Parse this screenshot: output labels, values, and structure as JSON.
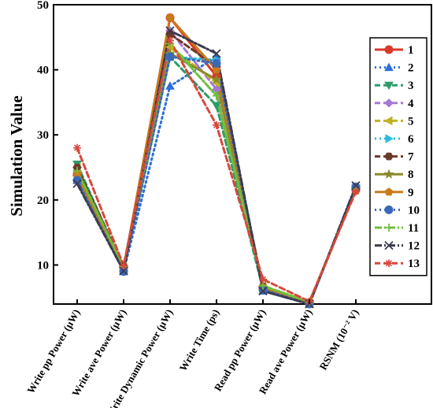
{
  "chart_data": {
    "type": "line",
    "ylabel": "Simulation Value",
    "ylim": [
      4,
      50
    ],
    "yticks": [
      10,
      20,
      30,
      40,
      50
    ],
    "categories": [
      "Write pp Power (µW)",
      "Write ave Power (µW)",
      "Write Dynamic Power (µW)",
      "Write Time (ps)",
      "Read pp Power (µW)",
      "Read ave Power (µW)",
      "RSNM (10⁻² V)"
    ],
    "grid": false,
    "legend_position": "right",
    "series": [
      {
        "name": "1",
        "color": "#d9392b",
        "marker": "circle",
        "dash": "solid",
        "values": [
          24.0,
          9.5,
          48.0,
          39.0,
          6.5,
          4.2,
          21.5
        ]
      },
      {
        "name": "2",
        "color": "#2e6fd8",
        "marker": "triangle-up",
        "dash": "dot",
        "values": [
          23.0,
          9.0,
          37.5,
          42.0,
          6.0,
          4.0,
          22.0
        ]
      },
      {
        "name": "3",
        "color": "#2e9c6a",
        "marker": "triangle-down",
        "dash": "dash",
        "values": [
          25.5,
          9.5,
          42.0,
          34.5,
          6.3,
          4.1,
          21.8
        ]
      },
      {
        "name": "4",
        "color": "#a57ad0",
        "marker": "diamond",
        "dash": "dash",
        "values": [
          24.5,
          9.5,
          46.0,
          37.0,
          6.6,
          4.2,
          21.7
        ]
      },
      {
        "name": "5",
        "color": "#c2b223",
        "marker": "triangle-left",
        "dash": "dash",
        "values": [
          25.0,
          9.6,
          43.5,
          38.0,
          6.8,
          4.3,
          21.6
        ]
      },
      {
        "name": "6",
        "color": "#2fbbd6",
        "marker": "triangle-right",
        "dash": "dot",
        "values": [
          24.0,
          9.2,
          42.0,
          41.5,
          6.4,
          4.1,
          21.9
        ]
      },
      {
        "name": "7",
        "color": "#6b3a2a",
        "marker": "hexagon",
        "dash": "dash",
        "values": [
          25.0,
          9.8,
          45.5,
          40.5,
          6.7,
          4.2,
          21.6
        ]
      },
      {
        "name": "8",
        "color": "#8a8a2e",
        "marker": "star",
        "dash": "solid",
        "values": [
          23.5,
          9.4,
          42.5,
          38.5,
          6.5,
          4.1,
          21.7
        ]
      },
      {
        "name": "9",
        "color": "#c97b1a",
        "marker": "pentagon",
        "dash": "solid",
        "values": [
          24.0,
          9.5,
          48.0,
          40.0,
          6.6,
          4.2,
          21.6
        ]
      },
      {
        "name": "10",
        "color": "#3a68b8",
        "marker": "sphere",
        "dash": "dot",
        "values": [
          23.0,
          9.0,
          42.0,
          41.0,
          6.2,
          4.0,
          22.0
        ]
      },
      {
        "name": "11",
        "color": "#6fbf3a",
        "marker": "plus",
        "dash": "dashdot",
        "values": [
          24.5,
          9.7,
          44.0,
          36.0,
          6.8,
          4.3,
          21.7
        ]
      },
      {
        "name": "12",
        "color": "#3b3b4f",
        "marker": "x",
        "dash": "dashdot",
        "values": [
          22.5,
          9.1,
          46.0,
          42.5,
          6.0,
          4.0,
          22.2
        ]
      },
      {
        "name": "13",
        "color": "#d9473c",
        "marker": "asterisk",
        "dash": "dash",
        "values": [
          28.0,
          9.9,
          44.5,
          31.5,
          7.8,
          4.4,
          21.3
        ]
      }
    ]
  }
}
